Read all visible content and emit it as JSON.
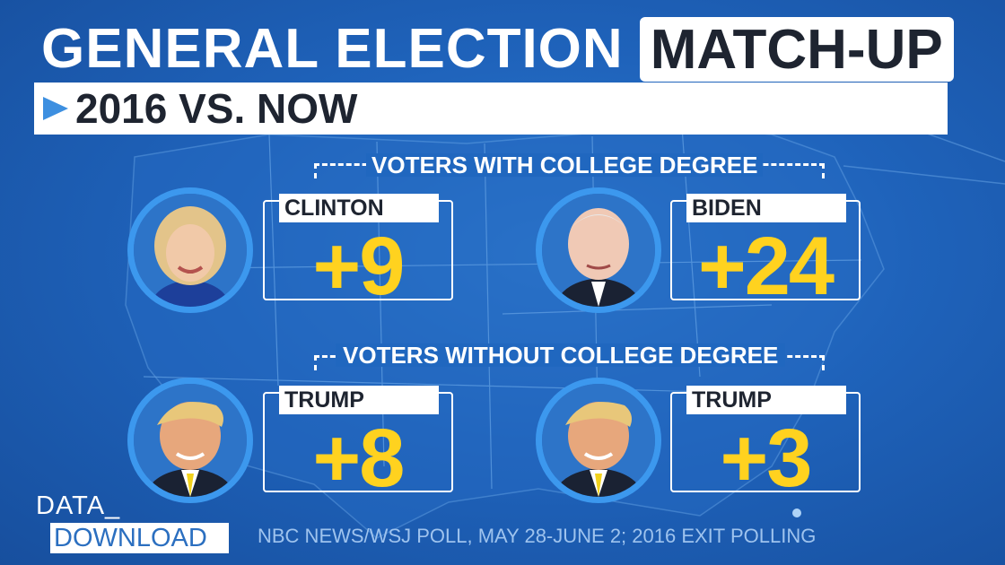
{
  "header": {
    "title_main": "GENERAL ELECTION",
    "title_highlight": "MATCH-UP",
    "subtitle": "2016 VS. NOW"
  },
  "sections": [
    {
      "label": "VOTERS WITH COLLEGE DEGREE",
      "results": [
        {
          "name": "CLINTON",
          "margin": "+9"
        },
        {
          "name": "BIDEN",
          "margin": "+24"
        }
      ]
    },
    {
      "label": "VOTERS WITHOUT COLLEGE DEGREE",
      "results": [
        {
          "name": "TRUMP",
          "margin": "+8"
        },
        {
          "name": "TRUMP",
          "margin": "+3"
        }
      ]
    }
  ],
  "footer": {
    "brand_top": "DATA_",
    "brand_bottom": "DOWNLOAD",
    "source": "NBC NEWS/WSJ POLL, MAY 28-JUNE 2; 2016 EXIT POLLING"
  },
  "colors": {
    "background": "#1f63bb",
    "accent_yellow": "#ffd21f",
    "portrait_ring": "#3c98ee"
  },
  "icons": {
    "subtitle_marker": "triangle-arrow-icon"
  }
}
